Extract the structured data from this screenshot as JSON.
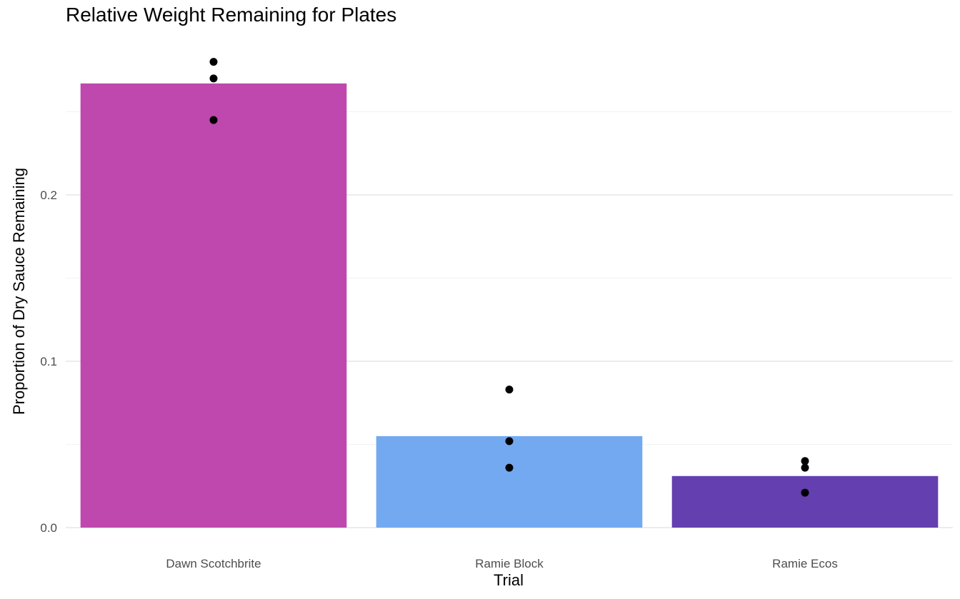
{
  "chart_data": {
    "type": "bar",
    "title": "Relative Weight Remaining for Plates",
    "xlabel": "Trial",
    "ylabel": "Proportion of Dry Sauce Remaining",
    "categories": [
      "Dawn Scotchbrite",
      "Ramie Block",
      "Ramie Ecos"
    ],
    "values": [
      0.267,
      0.055,
      0.031
    ],
    "points": [
      [
        0.28,
        0.27,
        0.245
      ],
      [
        0.083,
        0.052,
        0.036
      ],
      [
        0.04,
        0.036,
        0.021
      ]
    ],
    "colors": [
      "#BE48AD",
      "#73A9F0",
      "#643FB0"
    ],
    "point_color": "#000000",
    "ylim": [
      0,
      0.29
    ],
    "yticks": [
      0,
      0.1,
      0.2
    ],
    "ytick_labels": [
      "0.0",
      "0.1",
      "0.2"
    ],
    "minor_yticks": [
      0.05,
      0.15,
      0.25
    ],
    "grid": true,
    "legend": "none"
  }
}
